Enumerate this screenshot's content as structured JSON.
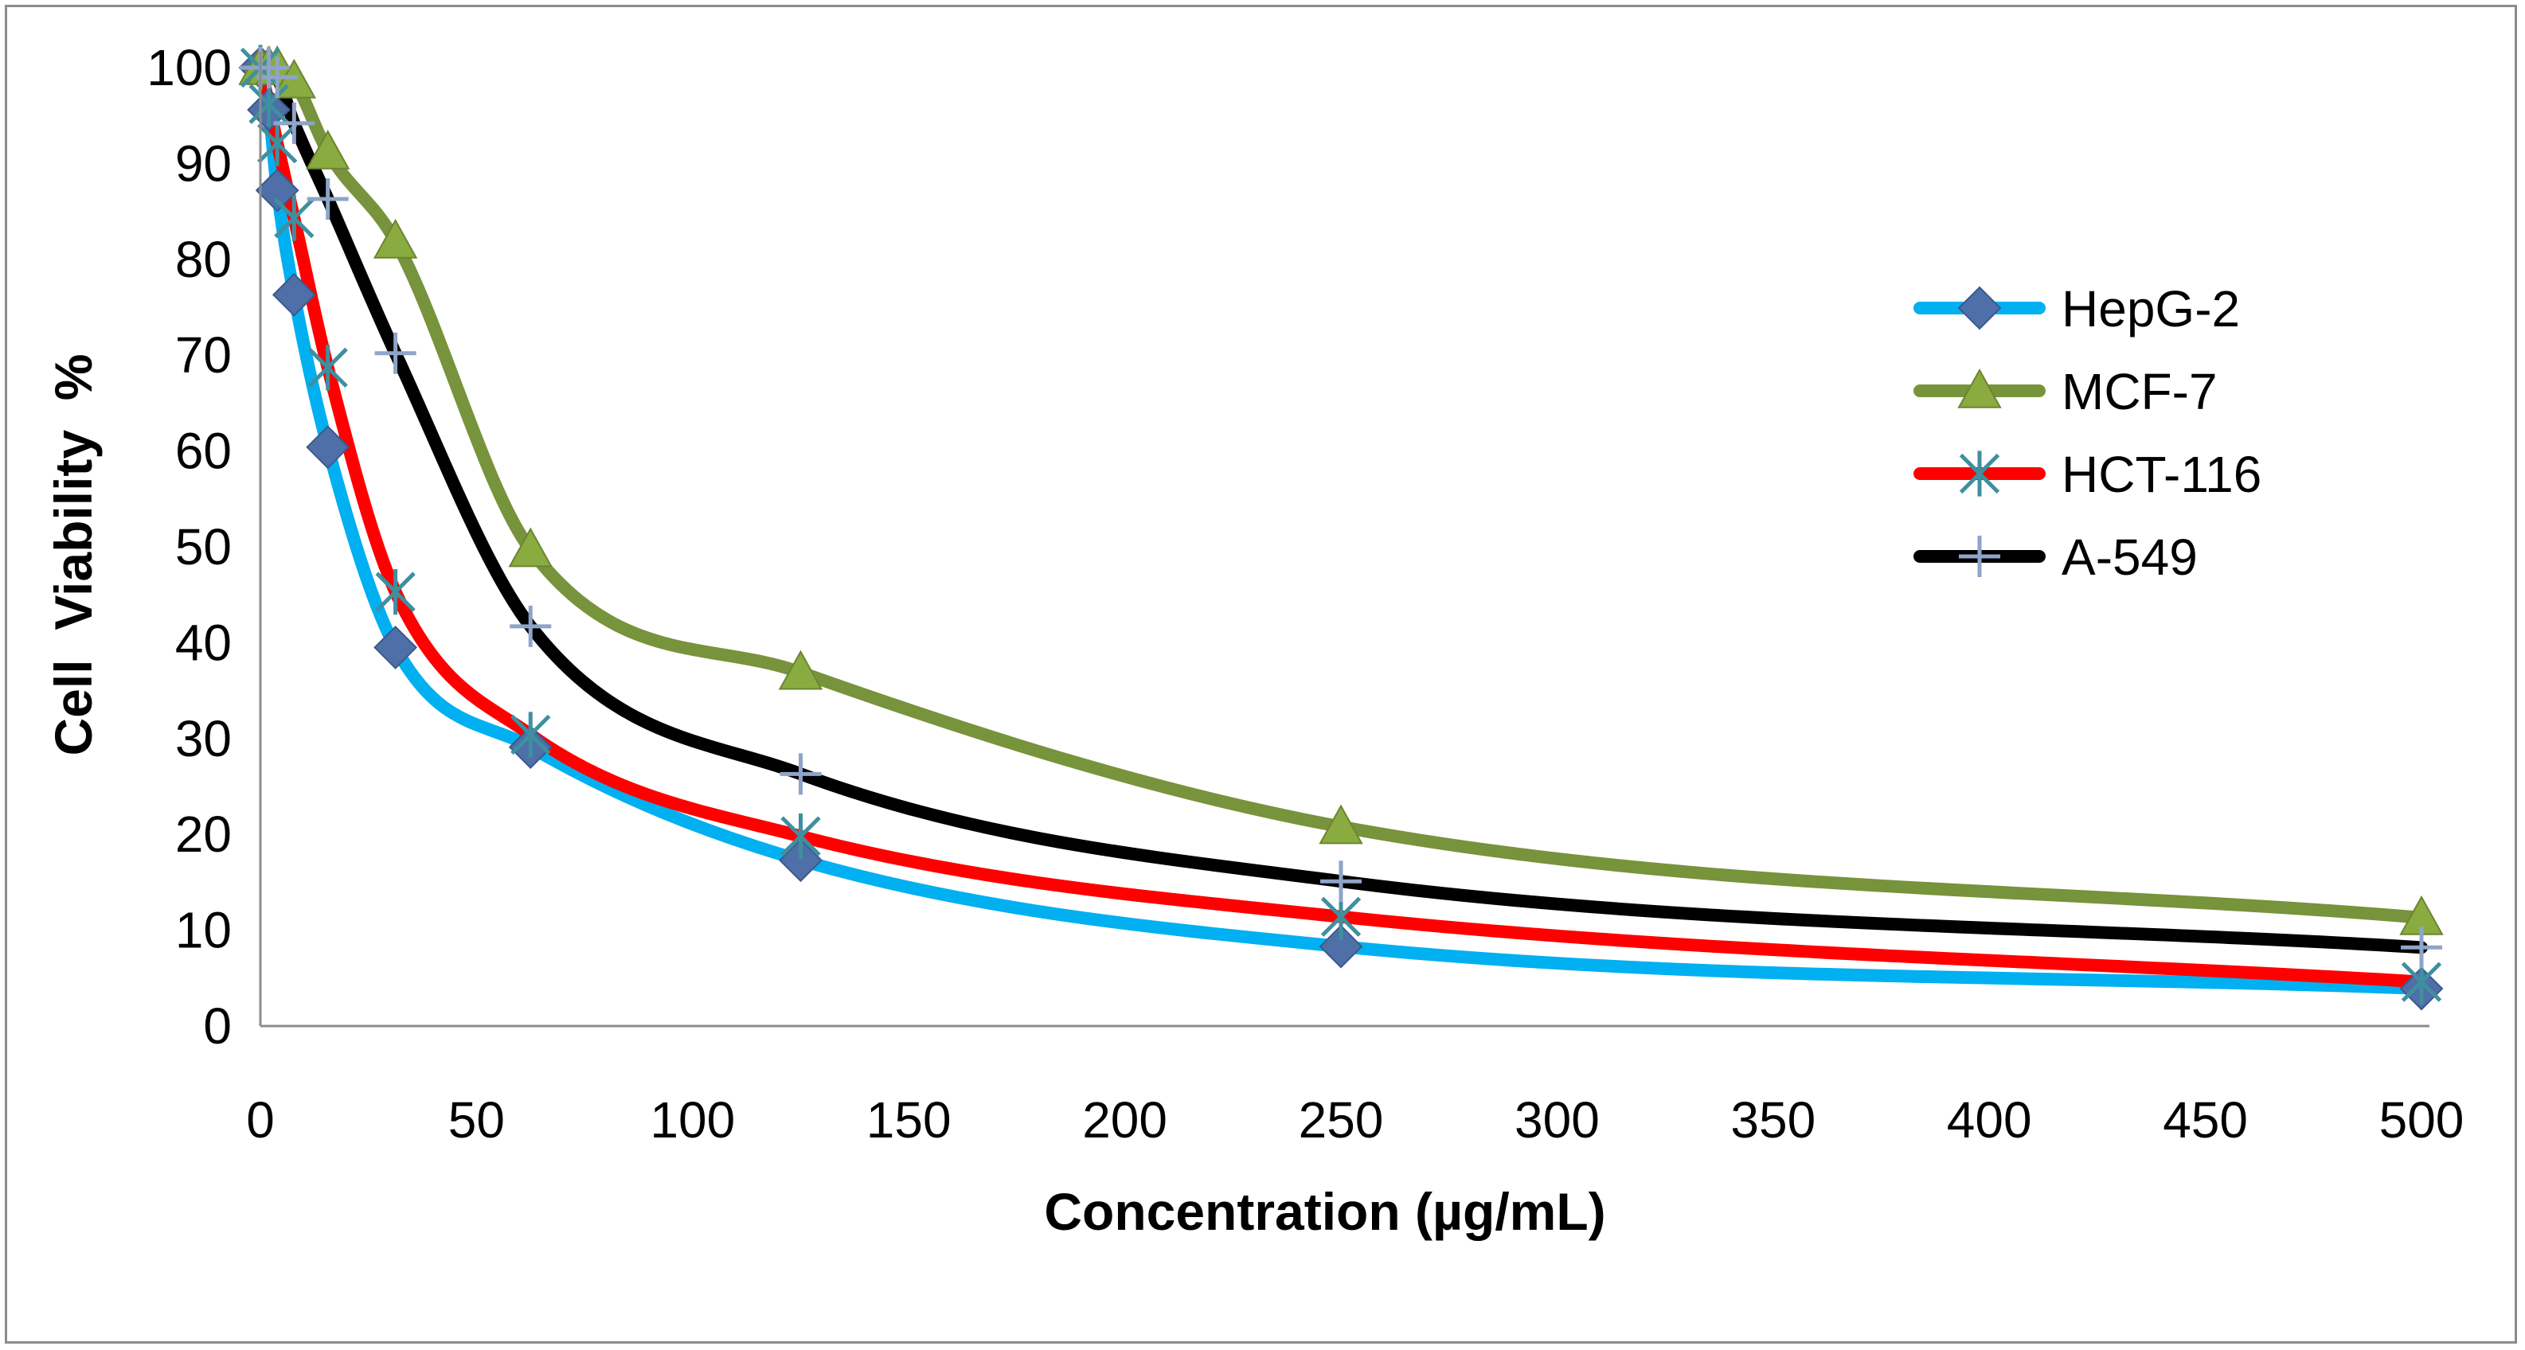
{
  "chart_data": {
    "type": "line",
    "title": "",
    "xlabel": "Concentration (µg/mL)",
    "ylabel": "Cell  Viability  %",
    "xlim": [
      0,
      500
    ],
    "ylim": [
      0,
      100
    ],
    "xticks": [
      0,
      50,
      100,
      150,
      200,
      250,
      300,
      350,
      400,
      450,
      500
    ],
    "yticks": [
      0,
      10,
      20,
      30,
      40,
      50,
      60,
      70,
      80,
      90,
      100
    ],
    "grid": false,
    "legend_position": "right",
    "x": [
      0,
      1.95,
      3.9,
      7.8,
      15.6,
      31.25,
      62.5,
      125,
      250,
      500
    ],
    "series": [
      {
        "name": "HepG-2",
        "color": "#00b0f0",
        "marker": "diamond",
        "marker_color": "#4f6fa8",
        "values": [
          100,
          95.6,
          87.2,
          76.3,
          60.4,
          39.5,
          29.1,
          17.3,
          8.3,
          3.9
        ]
      },
      {
        "name": "MCF-7",
        "color": "#77933c",
        "marker": "triangle",
        "marker_color": "#8aab3f",
        "values": [
          100,
          100,
          100,
          98.6,
          91.2,
          81.9,
          49.7,
          36.9,
          20.8,
          11.3
        ]
      },
      {
        "name": "HCT-116",
        "color": "#ff0000",
        "marker": "asterisk",
        "marker_color": "#3f8f9f",
        "values": [
          100,
          96.2,
          92.1,
          84.3,
          68.7,
          45.3,
          30.4,
          19.8,
          11.4,
          4.6
        ]
      },
      {
        "name": "A-549",
        "color": "#000000",
        "marker": "plus",
        "marker_color": "#8ea4c8",
        "values": [
          100,
          100,
          99,
          94.2,
          86.3,
          70.2,
          41.7,
          26.3,
          15.1,
          8.2
        ]
      }
    ]
  }
}
